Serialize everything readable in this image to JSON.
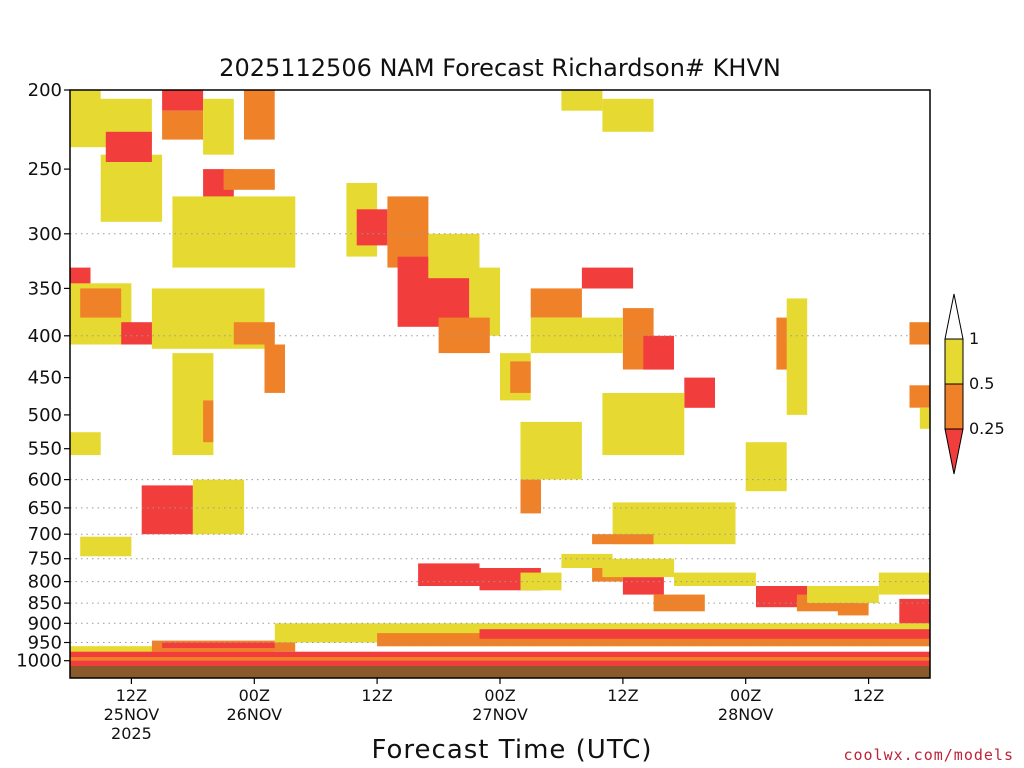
{
  "chart_data": {
    "type": "heatmap",
    "title": "2025112506 NAM Forecast Richardson# KHVN",
    "xlabel": "Forecast Time (UTC)",
    "ylabel": "",
    "credit": "coolwx.com/models",
    "y_scale": "log-pressure",
    "ylim": [
      1050,
      200
    ],
    "xlim_hours": [
      0,
      84
    ],
    "y_ticks": [
      200,
      250,
      300,
      350,
      400,
      450,
      500,
      550,
      600,
      650,
      700,
      750,
      800,
      850,
      900,
      950,
      1000
    ],
    "y_gridlines": [
      300,
      400,
      600,
      650,
      700,
      750,
      800,
      850,
      900,
      950
    ],
    "x_ticks": [
      {
        "hour": 6,
        "lines": [
          "12Z",
          "25NOV",
          "2025"
        ]
      },
      {
        "hour": 18,
        "lines": [
          "00Z",
          "26NOV"
        ]
      },
      {
        "hour": 30,
        "lines": [
          "12Z"
        ]
      },
      {
        "hour": 42,
        "lines": [
          "00Z",
          "27NOV"
        ]
      },
      {
        "hour": 54,
        "lines": [
          "12Z"
        ]
      },
      {
        "hour": 66,
        "lines": [
          "00Z",
          "28NOV"
        ]
      },
      {
        "hour": 78,
        "lines": [
          "12Z"
        ]
      }
    ],
    "legend": {
      "levels": [
        {
          "label": "1",
          "value": 1
        },
        {
          "label": "0.5",
          "value": 0.5
        },
        {
          "label": "0.25",
          "value": 0.25
        }
      ],
      "bins": [
        {
          "range": "0.5-1",
          "color": "#e6da32"
        },
        {
          "range": "0.25-0.5",
          "color": "#ef8228"
        },
        {
          "range": "<0.25",
          "color": "#f23d3d"
        }
      ]
    },
    "colors": {
      "high": "#e6da32",
      "mid": "#ef8228",
      "low": "#f23d3d",
      "ground": "#8b5a2b"
    },
    "ground_top_hpa": 1015,
    "regions": [
      {
        "bin": "high",
        "hours": [
          0,
          8
        ],
        "hpa": [
          205,
          235
        ]
      },
      {
        "bin": "high",
        "hours": [
          3,
          9
        ],
        "hpa": [
          240,
          290
        ]
      },
      {
        "bin": "low",
        "hours": [
          3.5,
          8
        ],
        "hpa": [
          225,
          245
        ]
      },
      {
        "bin": "low",
        "hours": [
          9,
          13
        ],
        "hpa": [
          200,
          212
        ]
      },
      {
        "bin": "mid",
        "hours": [
          9,
          13
        ],
        "hpa": [
          212,
          230
        ]
      },
      {
        "bin": "high",
        "hours": [
          13,
          16
        ],
        "hpa": [
          205,
          240
        ]
      },
      {
        "bin": "mid",
        "hours": [
          17,
          20
        ],
        "hpa": [
          200,
          230
        ]
      },
      {
        "bin": "low",
        "hours": [
          13,
          16
        ],
        "hpa": [
          250,
          290
        ]
      },
      {
        "bin": "mid",
        "hours": [
          15,
          20
        ],
        "hpa": [
          250,
          265
        ]
      },
      {
        "bin": "high",
        "hours": [
          10,
          22
        ],
        "hpa": [
          270,
          330
        ]
      },
      {
        "bin": "low",
        "hours": [
          0,
          2
        ],
        "hpa": [
          330,
          360
        ]
      },
      {
        "bin": "high",
        "hours": [
          0,
          6
        ],
        "hpa": [
          345,
          410
        ]
      },
      {
        "bin": "mid",
        "hours": [
          1,
          5
        ],
        "hpa": [
          350,
          380
        ]
      },
      {
        "bin": "low",
        "hours": [
          5,
          9
        ],
        "hpa": [
          385,
          410
        ]
      },
      {
        "bin": "high",
        "hours": [
          8,
          19
        ],
        "hpa": [
          350,
          415
        ]
      },
      {
        "bin": "mid",
        "hours": [
          16,
          20
        ],
        "hpa": [
          385,
          410
        ]
      },
      {
        "bin": "mid",
        "hours": [
          19,
          21
        ],
        "hpa": [
          410,
          470
        ]
      },
      {
        "bin": "high",
        "hours": [
          0,
          3
        ],
        "hpa": [
          525,
          560
        ]
      },
      {
        "bin": "high",
        "hours": [
          10,
          14
        ],
        "hpa": [
          420,
          560
        ]
      },
      {
        "bin": "mid",
        "hours": [
          13,
          14
        ],
        "hpa": [
          480,
          540
        ]
      },
      {
        "bin": "low",
        "hours": [
          7,
          12
        ],
        "hpa": [
          610,
          700
        ]
      },
      {
        "bin": "high",
        "hours": [
          12,
          17
        ],
        "hpa": [
          600,
          700
        ]
      },
      {
        "bin": "high",
        "hours": [
          1,
          6
        ],
        "hpa": [
          705,
          745
        ]
      },
      {
        "bin": "high",
        "hours": [
          27,
          30
        ],
        "hpa": [
          260,
          320
        ]
      },
      {
        "bin": "low",
        "hours": [
          28,
          31
        ],
        "hpa": [
          280,
          310
        ]
      },
      {
        "bin": "mid",
        "hours": [
          31,
          35
        ],
        "hpa": [
          270,
          330
        ]
      },
      {
        "bin": "low",
        "hours": [
          32,
          39
        ],
        "hpa": [
          320,
          390
        ]
      },
      {
        "bin": "high",
        "hours": [
          35,
          40
        ],
        "hpa": [
          300,
          340
        ]
      },
      {
        "bin": "high",
        "hours": [
          39,
          42
        ],
        "hpa": [
          330,
          400
        ]
      },
      {
        "bin": "mid",
        "hours": [
          36,
          41
        ],
        "hpa": [
          380,
          420
        ]
      },
      {
        "bin": "high",
        "hours": [
          42,
          45
        ],
        "hpa": [
          420,
          480
        ]
      },
      {
        "bin": "mid",
        "hours": [
          43,
          45
        ],
        "hpa": [
          430,
          470
        ]
      },
      {
        "bin": "mid",
        "hours": [
          45,
          50
        ],
        "hpa": [
          350,
          380
        ]
      },
      {
        "bin": "high",
        "hours": [
          45,
          54
        ],
        "hpa": [
          380,
          420
        ]
      },
      {
        "bin": "low",
        "hours": [
          50,
          55
        ],
        "hpa": [
          330,
          350
        ]
      },
      {
        "bin": "mid",
        "hours": [
          54,
          57
        ],
        "hpa": [
          370,
          440
        ]
      },
      {
        "bin": "low",
        "hours": [
          56,
          59
        ],
        "hpa": [
          400,
          440
        ]
      },
      {
        "bin": "low",
        "hours": [
          60,
          63
        ],
        "hpa": [
          450,
          490
        ]
      },
      {
        "bin": "high",
        "hours": [
          52,
          60
        ],
        "hpa": [
          470,
          560
        ]
      },
      {
        "bin": "high",
        "hours": [
          53,
          65
        ],
        "hpa": [
          640,
          720
        ]
      },
      {
        "bin": "mid",
        "hours": [
          51,
          57
        ],
        "hpa": [
          700,
          720
        ]
      },
      {
        "bin": "high",
        "hours": [
          48,
          53
        ],
        "hpa": [
          740,
          770
        ]
      },
      {
        "bin": "high",
        "hours": [
          44,
          50
        ],
        "hpa": [
          510,
          600
        ]
      },
      {
        "bin": "mid",
        "hours": [
          44,
          46
        ],
        "hpa": [
          600,
          660
        ]
      },
      {
        "bin": "high",
        "hours": [
          66,
          70
        ],
        "hpa": [
          540,
          620
        ]
      },
      {
        "bin": "mid",
        "hours": [
          69,
          71
        ],
        "hpa": [
          380,
          440
        ]
      },
      {
        "bin": "high",
        "hours": [
          70,
          72
        ],
        "hpa": [
          360,
          500
        ]
      },
      {
        "bin": "high",
        "hours": [
          0,
          3
        ],
        "hpa": [
          200,
          212
        ]
      },
      {
        "bin": "high",
        "hours": [
          48,
          52
        ],
        "hpa": [
          200,
          212
        ]
      },
      {
        "bin": "high",
        "hours": [
          52,
          57
        ],
        "hpa": [
          205,
          225
        ]
      },
      {
        "bin": "mid",
        "hours": [
          82,
          84
        ],
        "hpa": [
          385,
          410
        ]
      },
      {
        "bin": "mid",
        "hours": [
          82,
          84
        ],
        "hpa": [
          460,
          490
        ]
      },
      {
        "bin": "high",
        "hours": [
          83,
          84
        ],
        "hpa": [
          490,
          520
        ]
      },
      {
        "bin": "low",
        "hours": [
          34,
          40
        ],
        "hpa": [
          760,
          810
        ]
      },
      {
        "bin": "low",
        "hours": [
          40,
          46
        ],
        "hpa": [
          770,
          820
        ]
      },
      {
        "bin": "high",
        "hours": [
          44,
          48
        ],
        "hpa": [
          780,
          820
        ]
      },
      {
        "bin": "mid",
        "hours": [
          51,
          54
        ],
        "hpa": [
          770,
          800
        ]
      },
      {
        "bin": "low",
        "hours": [
          54,
          58
        ],
        "hpa": [
          790,
          830
        ]
      },
      {
        "bin": "mid",
        "hours": [
          57,
          62
        ],
        "hpa": [
          830,
          870
        ]
      },
      {
        "bin": "high",
        "hours": [
          52,
          59
        ],
        "hpa": [
          750,
          790
        ]
      },
      {
        "bin": "high",
        "hours": [
          59,
          67
        ],
        "hpa": [
          780,
          810
        ]
      },
      {
        "bin": "low",
        "hours": [
          67,
          72
        ],
        "hpa": [
          810,
          860
        ]
      },
      {
        "bin": "mid",
        "hours": [
          71,
          77
        ],
        "hpa": [
          830,
          870
        ]
      },
      {
        "bin": "high",
        "hours": [
          72,
          79
        ],
        "hpa": [
          810,
          850
        ]
      },
      {
        "bin": "mid",
        "hours": [
          75,
          78
        ],
        "hpa": [
          850,
          880
        ]
      },
      {
        "bin": "high",
        "hours": [
          79,
          84
        ],
        "hpa": [
          780,
          830
        ]
      },
      {
        "bin": "low",
        "hours": [
          81,
          84
        ],
        "hpa": [
          840,
          900
        ]
      },
      {
        "bin": "high",
        "hours": [
          0,
          20
        ],
        "hpa": [
          960,
          990
        ]
      },
      {
        "bin": "mid",
        "hours": [
          8,
          22
        ],
        "hpa": [
          945,
          975
        ]
      },
      {
        "bin": "low",
        "hours": [
          9,
          20
        ],
        "hpa": [
          950,
          965
        ]
      },
      {
        "bin": "high",
        "hours": [
          20,
          84
        ],
        "hpa": [
          900,
          950
        ]
      },
      {
        "bin": "mid",
        "hours": [
          30,
          84
        ],
        "hpa": [
          925,
          960
        ]
      },
      {
        "bin": "low",
        "hours": [
          40,
          84
        ],
        "hpa": [
          915,
          940
        ]
      },
      {
        "bin": "low",
        "hours": [
          0,
          84
        ],
        "hpa": [
          975,
          1000
        ]
      },
      {
        "bin": "mid",
        "hours": [
          0,
          84
        ],
        "hpa": [
          990,
          1005
        ]
      },
      {
        "bin": "low",
        "hours": [
          0,
          84
        ],
        "hpa": [
          1000,
          1015
        ]
      }
    ]
  }
}
